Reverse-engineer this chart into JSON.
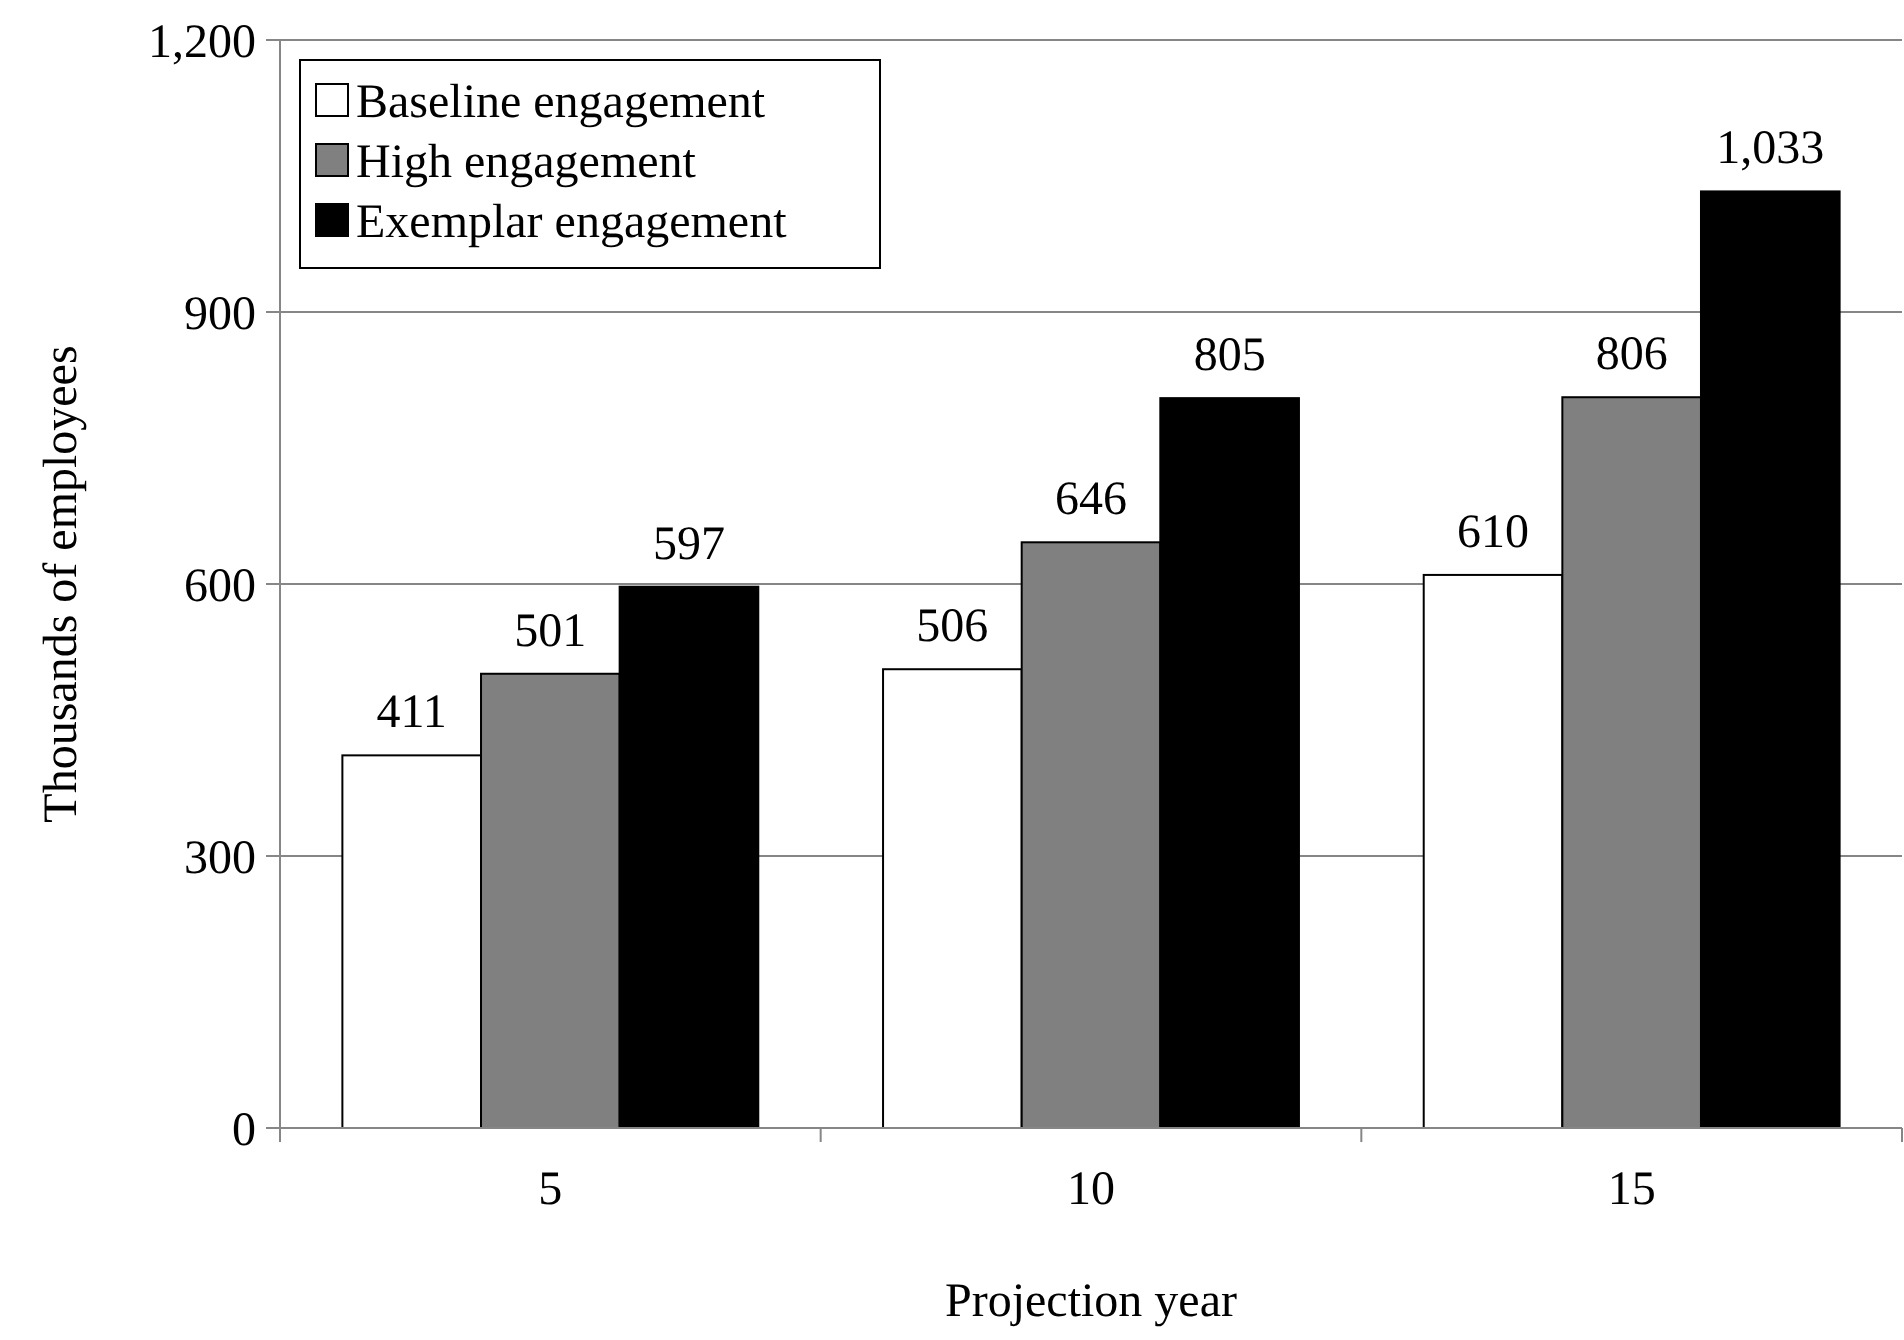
{
  "chart_data": {
    "type": "bar",
    "xlabel": "Projection year",
    "ylabel": "Thousands of employees",
    "categories": [
      "5",
      "10",
      "15"
    ],
    "series": [
      {
        "name": "Baseline engagement",
        "color": "#ffffff",
        "values": [
          411,
          506,
          610
        ],
        "value_labels": [
          "411",
          "506",
          "610"
        ]
      },
      {
        "name": "High engagement",
        "color": "#808080",
        "values": [
          501,
          646,
          806
        ],
        "value_labels": [
          "501",
          "646",
          "806"
        ]
      },
      {
        "name": "Exemplar engagement",
        "color": "#000000",
        "values": [
          597,
          805,
          1033
        ],
        "value_labels": [
          "597",
          "805",
          "1,033"
        ]
      }
    ],
    "ylim": [
      0,
      1200
    ],
    "yticks": [
      0,
      {
        "value": 300,
        "label": "300"
      },
      {
        "value": 600,
        "label": "600"
      },
      {
        "value": 900,
        "label": "900"
      },
      {
        "value": 1200,
        "label": "1,200"
      }
    ],
    "grid": "y",
    "legend": "top left"
  }
}
